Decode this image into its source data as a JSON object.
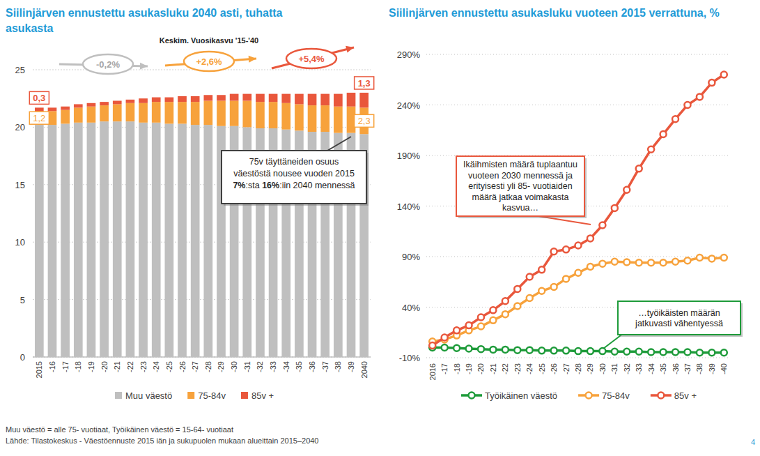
{
  "chart_data": [
    {
      "type": "bar",
      "stacked": true,
      "title": "Siilinjärven ennustettu asukasluku 2040 asti, tuhatta asukasta",
      "categories": [
        "2015",
        "-16",
        "-17",
        "-18",
        "-19",
        "-20",
        "-21",
        "-22",
        "-23",
        "-24",
        "-25",
        "-26",
        "-27",
        "-28",
        "-29",
        "-30",
        "-31",
        "-32",
        "-33",
        "-34",
        "-35",
        "-36",
        "-37",
        "-38",
        "-39",
        "2040"
      ],
      "series": [
        {
          "name": "Muu väestö",
          "color": "#bfbfbf",
          "values": [
            20.2,
            20.2,
            20.3,
            20.4,
            20.4,
            20.5,
            20.5,
            20.5,
            20.4,
            20.4,
            20.3,
            20.3,
            20.2,
            20.2,
            20.1,
            20.1,
            20.0,
            19.9,
            19.9,
            19.8,
            19.7,
            19.6,
            19.6,
            19.5,
            19.5,
            19.4
          ]
        },
        {
          "name": "75-84v",
          "color": "#f7a23c",
          "values": [
            1.2,
            1.2,
            1.2,
            1.3,
            1.4,
            1.4,
            1.5,
            1.6,
            1.7,
            1.8,
            1.9,
            1.9,
            2.0,
            2.1,
            2.2,
            2.2,
            2.3,
            2.3,
            2.3,
            2.3,
            2.3,
            2.3,
            2.3,
            2.3,
            2.3,
            2.3
          ],
          "value_labels": [
            "1,2",
            null,
            null,
            null,
            null,
            null,
            null,
            null,
            null,
            null,
            null,
            null,
            null,
            null,
            null,
            null,
            null,
            null,
            null,
            null,
            null,
            null,
            null,
            null,
            null,
            "2,3"
          ]
        },
        {
          "name": "85v +",
          "color": "#e9573c",
          "values": [
            0.3,
            0.3,
            0.3,
            0.3,
            0.3,
            0.3,
            0.3,
            0.3,
            0.4,
            0.4,
            0.4,
            0.5,
            0.5,
            0.5,
            0.5,
            0.6,
            0.6,
            0.7,
            0.7,
            0.8,
            0.9,
            1.0,
            1.0,
            1.1,
            1.2,
            1.3
          ],
          "value_labels": [
            "0,3",
            null,
            null,
            null,
            null,
            null,
            null,
            null,
            null,
            null,
            null,
            null,
            null,
            null,
            null,
            null,
            null,
            null,
            null,
            null,
            null,
            null,
            null,
            null,
            null,
            "1,3"
          ]
        }
      ],
      "ylim": [
        0,
        25
      ],
      "yticks": [
        0,
        5,
        10,
        15,
        20,
        25
      ],
      "grid": true,
      "legend": "bottom",
      "growth": {
        "title": "Keskim. Vuosikasvu '15-'40",
        "labels": [
          "-0,2%",
          "+2,6%",
          "+5,4%"
        ]
      },
      "callout": {
        "lines": [
          [
            {
              "text": "75v täyttäneiden osuus",
              "bold": false
            }
          ],
          [
            {
              "text": "väestöstä nousee vuoden 2015",
              "bold": false
            }
          ],
          [
            {
              "text": "7%",
              "bold": true
            },
            {
              "text": ":sta ",
              "bold": false
            },
            {
              "text": "16%",
              "bold": true
            },
            {
              "text": ":iin 2040 mennessä",
              "bold": false
            }
          ]
        ]
      }
    },
    {
      "type": "line",
      "marker": "circle",
      "title": "Siilinjärven ennustettu asukasluku vuoteen 2015 verrattuna, %",
      "categories": [
        "2016",
        "-17",
        "-18",
        "-19",
        "-20",
        "-21",
        "-22",
        "-23",
        "-24",
        "-25",
        "-26",
        "-27",
        "-28",
        "-29",
        "-30",
        "-31",
        "-32",
        "-33",
        "-34",
        "-35",
        "-36",
        "-37",
        "-38",
        "-39",
        "-40"
      ],
      "series": [
        {
          "name": "Työikäinen väestö",
          "color": "#1e9b3a",
          "values": [
            0,
            0,
            -0.5,
            -1,
            -1.5,
            -2,
            -2,
            -2.5,
            -2.5,
            -3,
            -3,
            -3,
            -3.5,
            -3.5,
            -3.5,
            -4,
            -4,
            -4,
            -4.5,
            -4.5,
            -4.5,
            -4.5,
            -5,
            -5,
            -5
          ]
        },
        {
          "name": "75-84v",
          "color": "#f7a23c",
          "values": [
            6,
            8,
            12,
            17,
            21,
            27,
            33,
            41,
            49,
            56,
            60,
            68,
            74,
            80,
            83,
            85,
            84.5,
            84,
            84,
            84,
            85,
            86,
            89,
            88,
            89
          ]
        },
        {
          "name": "85v +",
          "color": "#e9573c",
          "values": [
            2,
            10,
            17,
            22,
            30,
            37,
            46,
            58,
            70,
            77,
            95,
            97,
            101,
            108,
            121,
            138,
            156,
            177,
            196,
            211,
            226,
            240,
            248,
            262,
            270
          ]
        }
      ],
      "ylim": [
        -10,
        290
      ],
      "yticks": [
        {
          "value": -10,
          "label": "-10%"
        },
        {
          "value": 40,
          "label": "40%"
        },
        {
          "value": 90,
          "label": "90%"
        },
        {
          "value": 140,
          "label": "140%"
        },
        {
          "value": 190,
          "label": "190%"
        },
        {
          "value": 240,
          "label": "240%"
        },
        {
          "value": 290,
          "label": "290%"
        }
      ],
      "grid": true,
      "legend": "bottom",
      "callouts": [
        {
          "color": "#e9573c",
          "lines": [
            "Ikäihmisten määrä tuplaantuu",
            "vuoteen 2030 mennessä ja",
            "erityisesti yli 85- vuotiaiden",
            "määrä jatkaa voimakasta",
            "kasvua…"
          ]
        },
        {
          "color": "#1e9b3a",
          "lines": [
            "…työikäisten määrän",
            "jatkuvasti vähentyessä"
          ]
        }
      ]
    }
  ],
  "footer": {
    "lines": [
      "Muu väestö = alle 75- vuotiaat, Työikäinen väestö = 15-64- vuotiaat",
      "Lähde: Tilastokeskus - Väestöennuste 2015 iän ja sukupuolen mukaan alueittain 2015–2040"
    ]
  },
  "page_number": "4"
}
